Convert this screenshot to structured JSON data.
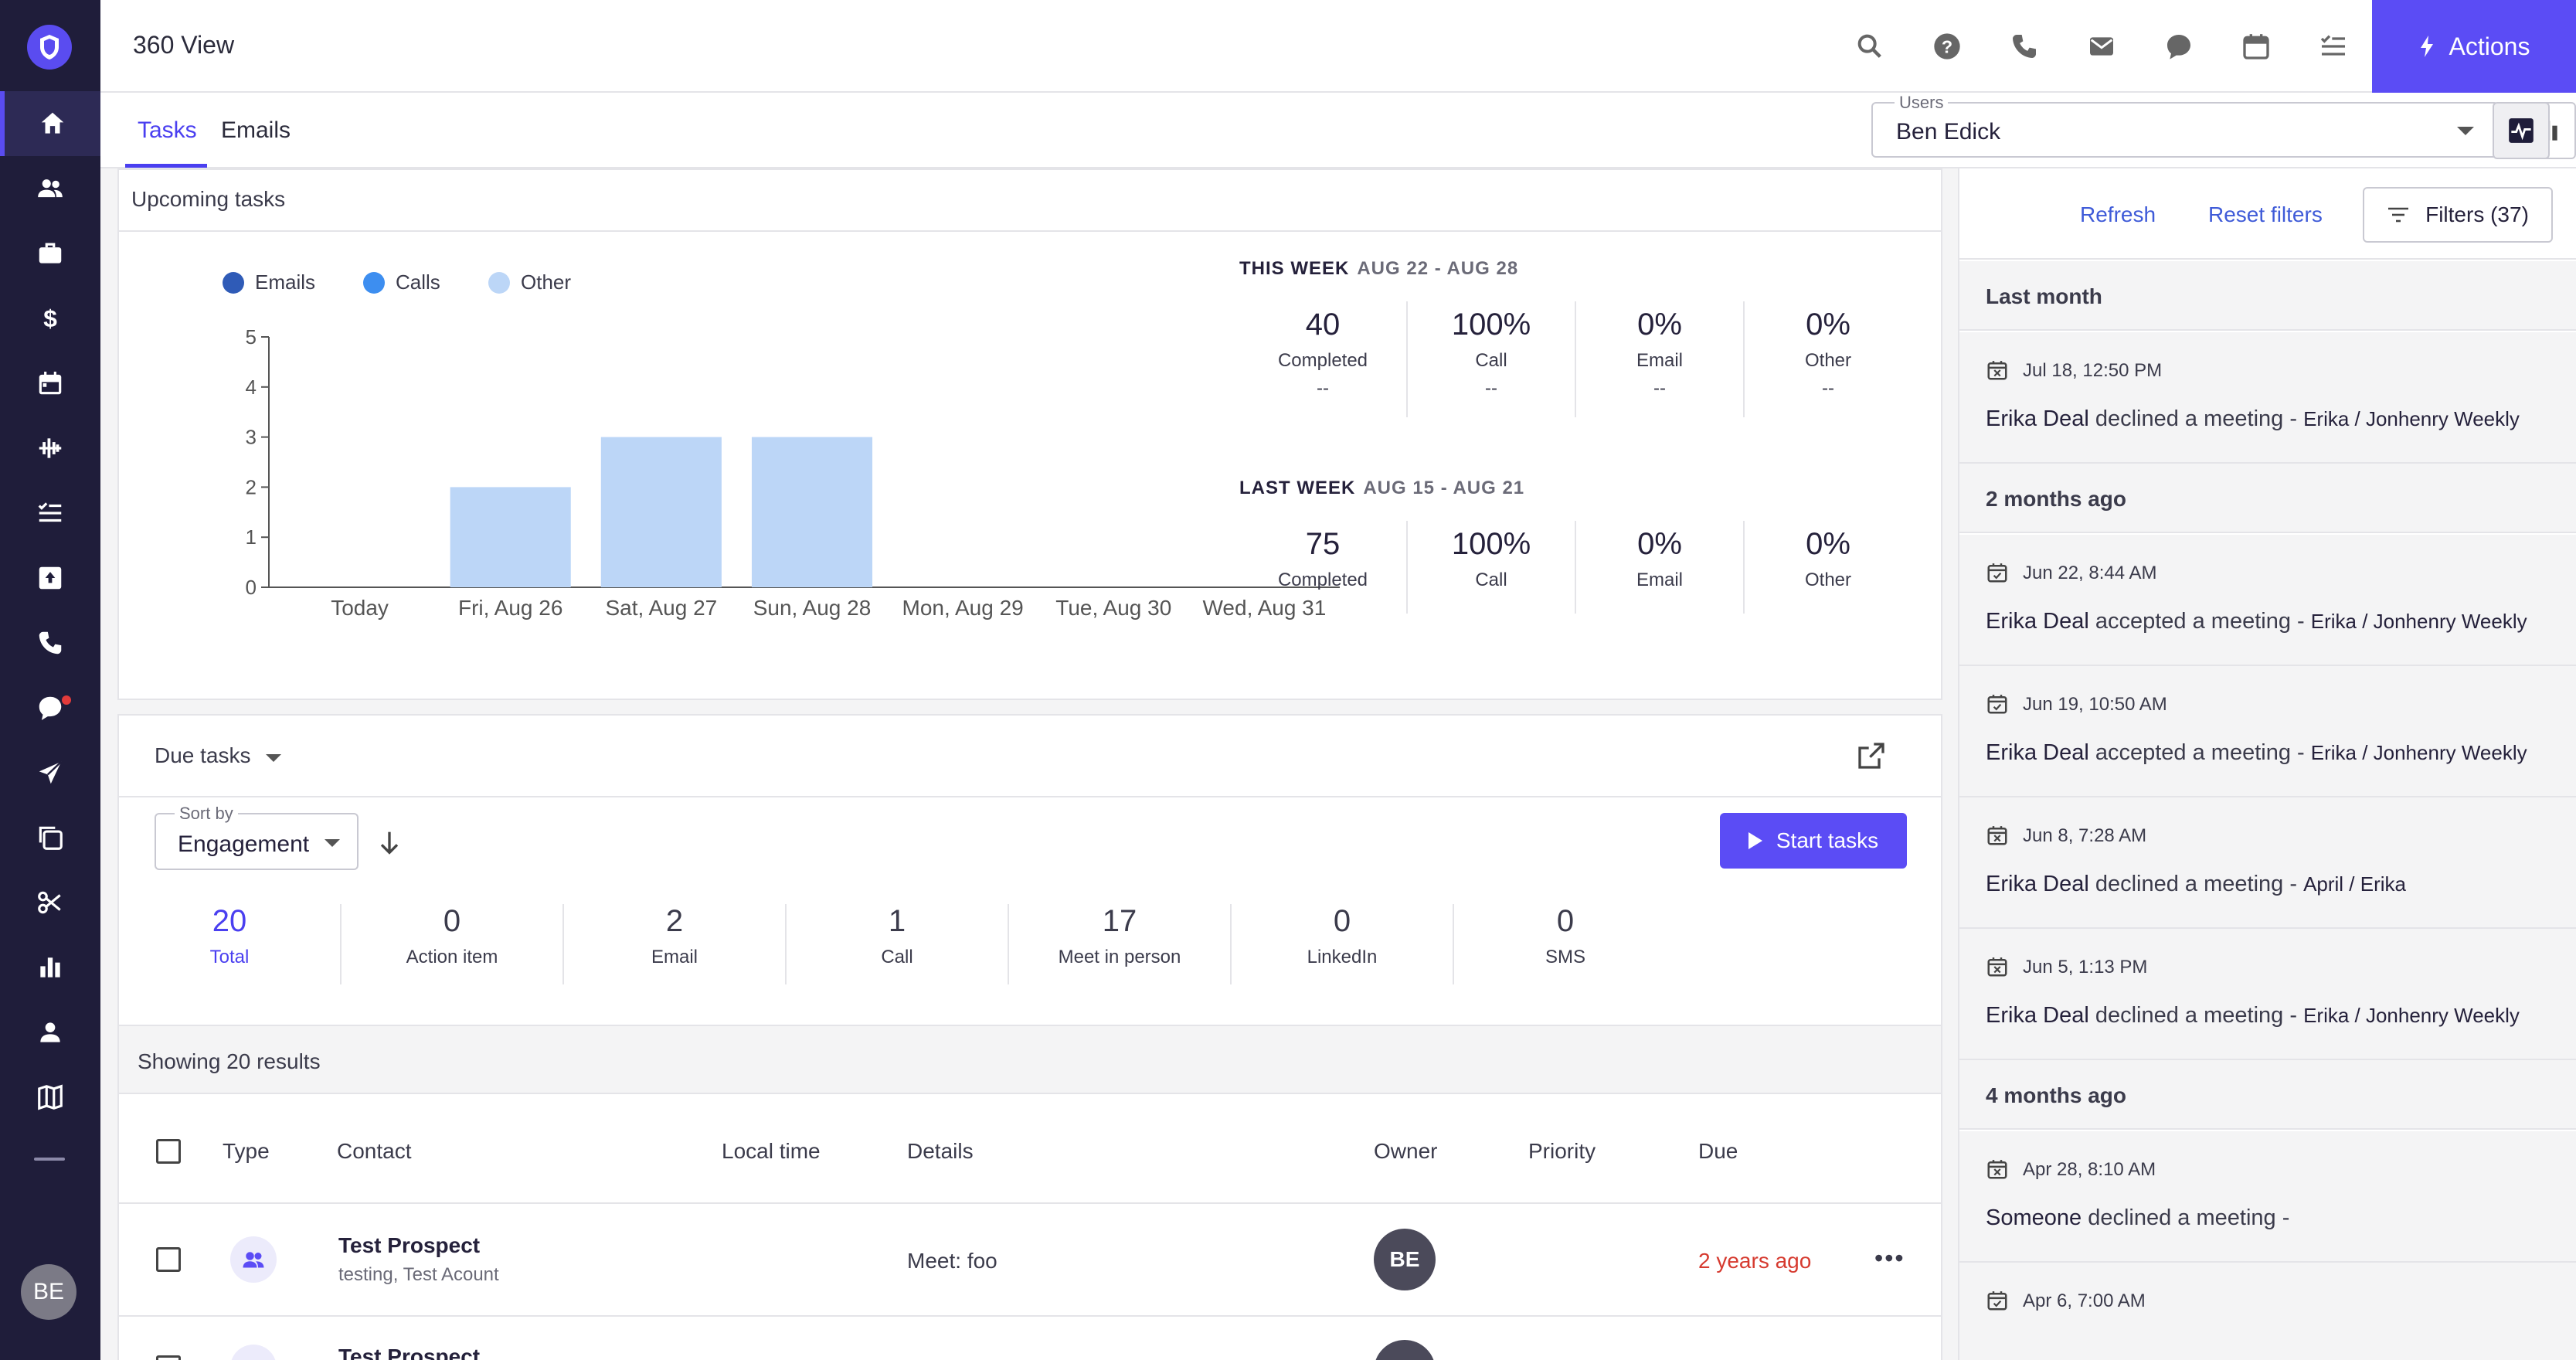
{
  "app": {
    "title": "360 View",
    "actions_label": "Actions",
    "user_initials": "BE"
  },
  "sidebar": {
    "items": [
      {
        "icon": "home-icon",
        "active": true
      },
      {
        "icon": "people-icon"
      },
      {
        "icon": "briefcase-icon"
      },
      {
        "icon": "dollar-icon"
      },
      {
        "icon": "calendar-icon"
      },
      {
        "icon": "waveform-icon"
      },
      {
        "icon": "task-list-icon"
      },
      {
        "icon": "upload-box-icon"
      },
      {
        "icon": "phone-icon"
      },
      {
        "icon": "chat-icon",
        "notification": true
      },
      {
        "icon": "send-icon"
      },
      {
        "icon": "copy-icon"
      },
      {
        "icon": "scissors-icon"
      },
      {
        "icon": "bar-chart-icon"
      },
      {
        "icon": "person-icon"
      },
      {
        "icon": "map-icon"
      }
    ]
  },
  "topbar": {
    "icons": [
      "search-icon",
      "help-icon",
      "phone-icon",
      "mail-icon",
      "chat-icon",
      "calendar-icon",
      "task-list-icon"
    ]
  },
  "tabs": [
    {
      "label": "Tasks",
      "active": true
    },
    {
      "label": "Emails"
    }
  ],
  "users": {
    "label": "Users",
    "value": "Ben Edick"
  },
  "upcoming": {
    "title": "Upcoming tasks",
    "legend": [
      {
        "name": "Emails",
        "color": "#2f5bb7"
      },
      {
        "name": "Calls",
        "color": "#3d8ef0"
      },
      {
        "name": "Other",
        "color": "#bcd6f7"
      }
    ],
    "this_week": {
      "title": "THIS WEEK",
      "dates": "AUG 22 - AUG 28",
      "stats": [
        {
          "num": "40",
          "label": "Completed",
          "sub": "--"
        },
        {
          "num": "100%",
          "label": "Call",
          "sub": "--"
        },
        {
          "num": "0%",
          "label": "Email",
          "sub": "--"
        },
        {
          "num": "0%",
          "label": "Other",
          "sub": "--"
        }
      ]
    },
    "last_week": {
      "title": "LAST WEEK",
      "dates": "AUG 15 - AUG 21",
      "stats": [
        {
          "num": "75",
          "label": "Completed"
        },
        {
          "num": "100%",
          "label": "Call"
        },
        {
          "num": "0%",
          "label": "Email"
        },
        {
          "num": "0%",
          "label": "Other"
        }
      ]
    }
  },
  "chart_data": {
    "type": "bar",
    "categories": [
      "Today",
      "Fri, Aug 26",
      "Sat, Aug 27",
      "Sun, Aug 28",
      "Mon, Aug 29",
      "Tue, Aug 30",
      "Wed, Aug 31"
    ],
    "series": [
      {
        "name": "Emails",
        "values": [
          0,
          0,
          0,
          0,
          0,
          0,
          0
        ],
        "color": "#2f5bb7"
      },
      {
        "name": "Calls",
        "values": [
          0,
          0,
          0,
          0,
          0,
          0,
          0
        ],
        "color": "#3d8ef0"
      },
      {
        "name": "Other",
        "values": [
          0,
          2,
          3,
          3,
          0,
          0,
          0
        ],
        "color": "#bcd6f7"
      }
    ],
    "stacked": true,
    "ylim": [
      0,
      5
    ],
    "yticks": [
      "0",
      "1",
      "2",
      "3",
      "4",
      "5"
    ],
    "legend": "top-left",
    "grid": false
  },
  "due": {
    "title": "Due tasks",
    "sort_label": "Sort by",
    "sort_value": "Engagement",
    "start_label": "Start tasks",
    "counts": [
      {
        "n": "20",
        "label": "Total",
        "active": true
      },
      {
        "n": "0",
        "label": "Action item"
      },
      {
        "n": "2",
        "label": "Email"
      },
      {
        "n": "1",
        "label": "Call"
      },
      {
        "n": "17",
        "label": "Meet in person"
      },
      {
        "n": "0",
        "label": "LinkedIn"
      },
      {
        "n": "0",
        "label": "SMS"
      }
    ],
    "results": "Showing 20 results",
    "columns": [
      "Type",
      "Contact",
      "Local time",
      "Details",
      "Owner",
      "Priority",
      "Due"
    ],
    "rows": [
      {
        "name": "Test Prospect",
        "sub": "testing, Test Acount",
        "detail_key": "Meet:",
        "detail_val": "foo",
        "owner": "BE",
        "due": "2 years ago",
        "more": "•••"
      },
      {
        "name": "Test Prospect",
        "owner": ""
      }
    ]
  },
  "right": {
    "refresh": "Refresh",
    "reset": "Reset filters",
    "filters": "Filters (37)",
    "feed": [
      {
        "group": "Last month"
      },
      {
        "time": "Jul 18, 12:50 PM",
        "who": "Erika Deal",
        "action": " declined a meeting - ",
        "meeting": "Erika / Jonhenry Weekly",
        "icon": "calendar-x-icon"
      },
      {
        "group": "2 months ago"
      },
      {
        "time": "Jun 22, 8:44 AM",
        "who": "Erika Deal",
        "action": " accepted a meeting - ",
        "meeting": "Erika / Jonhenry Weekly",
        "icon": "calendar-check-icon"
      },
      {
        "time": "Jun 19, 10:50 AM",
        "who": "Erika Deal",
        "action": " accepted a meeting - ",
        "meeting": "Erika / Jonhenry Weekly",
        "icon": "calendar-check-icon"
      },
      {
        "time": "Jun 8, 7:28 AM",
        "who": "Erika Deal",
        "action": " declined a meeting - ",
        "meeting": "April / Erika",
        "icon": "calendar-x-icon"
      },
      {
        "time": "Jun 5, 1:13 PM",
        "who": "Erika Deal",
        "action": " declined a meeting - ",
        "meeting": "Erika / Jonhenry Weekly",
        "icon": "calendar-x-icon"
      },
      {
        "group": "4 months ago"
      },
      {
        "time": "Apr 28, 8:10 AM",
        "who": "Someone",
        "action": " declined a meeting - ",
        "meeting": "",
        "icon": "calendar-x-icon"
      },
      {
        "time": "Apr 6, 7:00 AM",
        "who": "",
        "action": "",
        "meeting": "",
        "icon": "calendar-check-icon"
      }
    ]
  }
}
